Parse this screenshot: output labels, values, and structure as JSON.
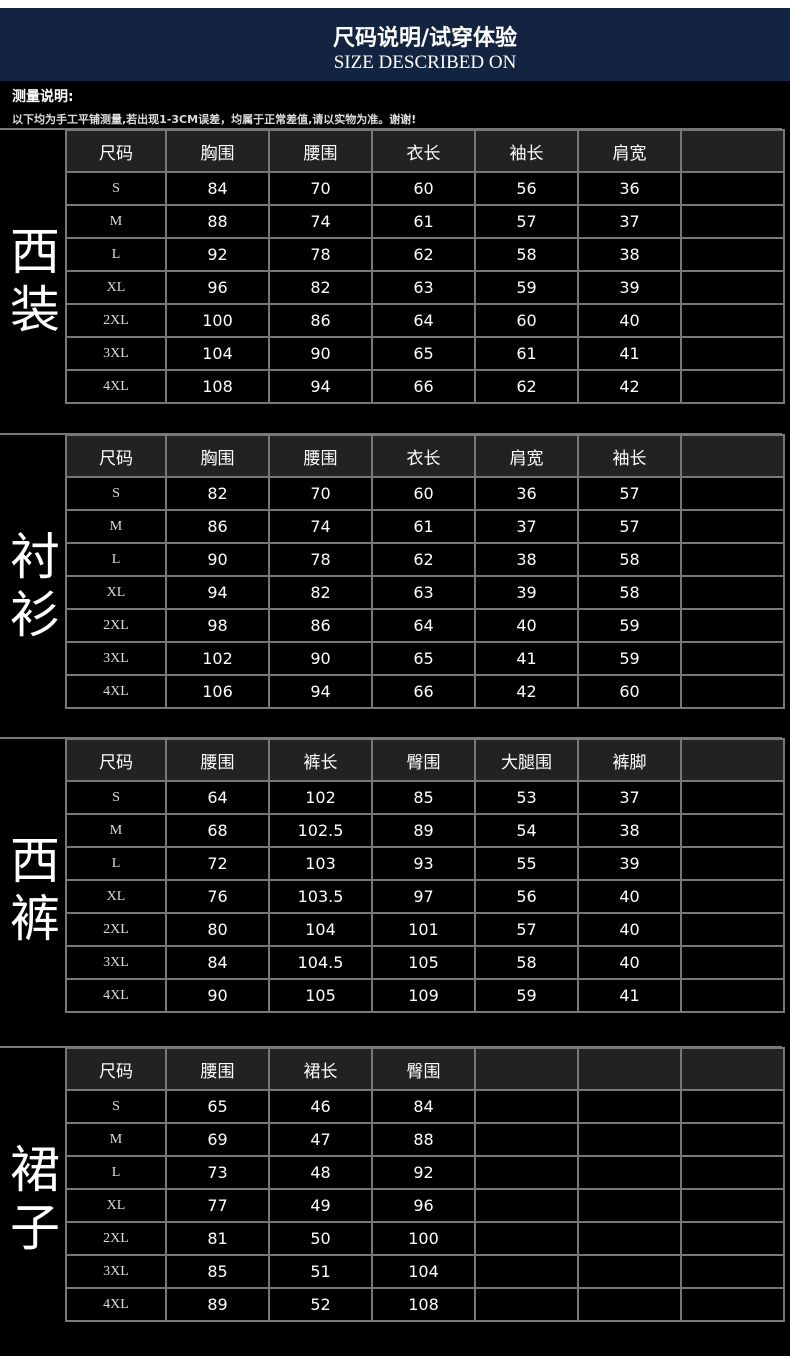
{
  "header": {
    "title": "尺码说明/试穿体验",
    "subtitle": "SIZE DESCRIBED ON"
  },
  "note": {
    "title": "测量说明:",
    "text": "以下均为手工平铺测量,若出现1-3CM误差，均属于正常差值,请以实物为准。谢谢!"
  },
  "sections": [
    {
      "label": "西装",
      "columns": [
        "尺码",
        "胸围",
        "腰围",
        "衣长",
        "袖长",
        "肩宽",
        ""
      ],
      "rows": [
        [
          "S",
          "84",
          "70",
          "60",
          "56",
          "36",
          ""
        ],
        [
          "M",
          "88",
          "74",
          "61",
          "57",
          "37",
          ""
        ],
        [
          "L",
          "92",
          "78",
          "62",
          "58",
          "38",
          ""
        ],
        [
          "XL",
          "96",
          "82",
          "63",
          "59",
          "39",
          ""
        ],
        [
          "2XL",
          "100",
          "86",
          "64",
          "60",
          "40",
          ""
        ],
        [
          "3XL",
          "104",
          "90",
          "65",
          "61",
          "41",
          ""
        ],
        [
          "4XL",
          "108",
          "94",
          "66",
          "62",
          "42",
          ""
        ]
      ]
    },
    {
      "label": "衬衫",
      "columns": [
        "尺码",
        "胸围",
        "腰围",
        "衣长",
        "肩宽",
        "袖长",
        ""
      ],
      "rows": [
        [
          "S",
          "82",
          "70",
          "60",
          "36",
          "57",
          ""
        ],
        [
          "M",
          "86",
          "74",
          "61",
          "37",
          "57",
          ""
        ],
        [
          "L",
          "90",
          "78",
          "62",
          "38",
          "58",
          ""
        ],
        [
          "XL",
          "94",
          "82",
          "63",
          "39",
          "58",
          ""
        ],
        [
          "2XL",
          "98",
          "86",
          "64",
          "40",
          "59",
          ""
        ],
        [
          "3XL",
          "102",
          "90",
          "65",
          "41",
          "59",
          ""
        ],
        [
          "4XL",
          "106",
          "94",
          "66",
          "42",
          "60",
          ""
        ]
      ]
    },
    {
      "label": "西裤",
      "columns": [
        "尺码",
        "腰围",
        "裤长",
        "臀围",
        "大腿围",
        "裤脚",
        ""
      ],
      "rows": [
        [
          "S",
          "64",
          "102",
          "85",
          "53",
          "37",
          ""
        ],
        [
          "M",
          "68",
          "102.5",
          "89",
          "54",
          "38",
          ""
        ],
        [
          "L",
          "72",
          "103",
          "93",
          "55",
          "39",
          ""
        ],
        [
          "XL",
          "76",
          "103.5",
          "97",
          "56",
          "40",
          ""
        ],
        [
          "2XL",
          "80",
          "104",
          "101",
          "57",
          "40",
          ""
        ],
        [
          "3XL",
          "84",
          "104.5",
          "105",
          "58",
          "40",
          ""
        ],
        [
          "4XL",
          "90",
          "105",
          "109",
          "59",
          "41",
          ""
        ]
      ]
    },
    {
      "label": "裙子",
      "columns": [
        "尺码",
        "腰围",
        "裙长",
        "臀围",
        "",
        "",
        ""
      ],
      "rows": [
        [
          "S",
          "65",
          "46",
          "84",
          "",
          "",
          ""
        ],
        [
          "M",
          "69",
          "47",
          "88",
          "",
          "",
          ""
        ],
        [
          "L",
          "73",
          "48",
          "92",
          "",
          "",
          ""
        ],
        [
          "XL",
          "77",
          "49",
          "96",
          "",
          "",
          ""
        ],
        [
          "2XL",
          "81",
          "50",
          "100",
          "",
          "",
          ""
        ],
        [
          "3XL",
          "85",
          "51",
          "104",
          "",
          "",
          ""
        ],
        [
          "4XL",
          "89",
          "52",
          "108",
          "",
          "",
          ""
        ]
      ]
    }
  ]
}
